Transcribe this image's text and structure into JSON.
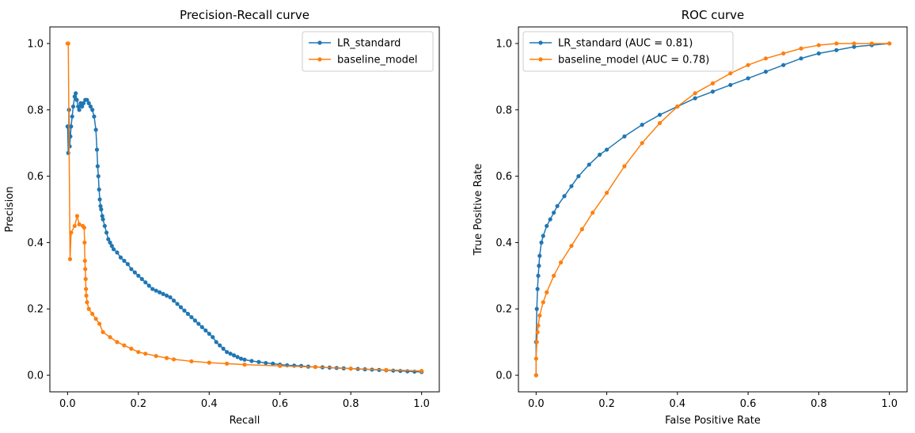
{
  "colors": {
    "series_1": "#1f77b4",
    "series_2": "#ff7f0e"
  },
  "chart_data": [
    {
      "type": "line",
      "title": "Precision-Recall curve",
      "xlabel": "Recall",
      "ylabel": "Precision",
      "xlim": [
        -0.05,
        1.05
      ],
      "ylim": [
        -0.05,
        1.05
      ],
      "xticks": [
        "0.0",
        "0.2",
        "0.4",
        "0.6",
        "0.8",
        "1.0"
      ],
      "yticks": [
        "0.0",
        "0.2",
        "0.4",
        "0.6",
        "0.8",
        "1.0"
      ],
      "grid": false,
      "legend_position": "top-right",
      "series": [
        {
          "name": "LR_standard",
          "color": "#1f77b4",
          "marker": "dot",
          "x": [
            0.0,
            0.002,
            0.004,
            0.006,
            0.008,
            0.01,
            0.013,
            0.016,
            0.02,
            0.023,
            0.026,
            0.03,
            0.033,
            0.037,
            0.041,
            0.045,
            0.05,
            0.055,
            0.06,
            0.065,
            0.07,
            0.075,
            0.08,
            0.083,
            0.085,
            0.087,
            0.089,
            0.091,
            0.093,
            0.095,
            0.098,
            0.1,
            0.105,
            0.11,
            0.115,
            0.12,
            0.125,
            0.13,
            0.14,
            0.15,
            0.16,
            0.17,
            0.18,
            0.19,
            0.2,
            0.21,
            0.22,
            0.23,
            0.24,
            0.25,
            0.26,
            0.27,
            0.28,
            0.29,
            0.3,
            0.31,
            0.32,
            0.33,
            0.34,
            0.35,
            0.36,
            0.37,
            0.38,
            0.39,
            0.4,
            0.41,
            0.42,
            0.43,
            0.44,
            0.45,
            0.46,
            0.47,
            0.48,
            0.49,
            0.5,
            0.52,
            0.54,
            0.56,
            0.58,
            0.6,
            0.62,
            0.64,
            0.66,
            0.68,
            0.7,
            0.72,
            0.74,
            0.76,
            0.78,
            0.8,
            0.82,
            0.84,
            0.86,
            0.88,
            0.9,
            0.92,
            0.94,
            0.96,
            0.98,
            1.0
          ],
          "y": [
            0.75,
            0.67,
            0.8,
            0.69,
            0.72,
            0.75,
            0.78,
            0.81,
            0.84,
            0.85,
            0.83,
            0.81,
            0.8,
            0.82,
            0.81,
            0.82,
            0.83,
            0.83,
            0.82,
            0.81,
            0.8,
            0.78,
            0.74,
            0.68,
            0.63,
            0.6,
            0.56,
            0.53,
            0.51,
            0.5,
            0.48,
            0.47,
            0.45,
            0.43,
            0.41,
            0.4,
            0.39,
            0.38,
            0.37,
            0.355,
            0.345,
            0.335,
            0.32,
            0.31,
            0.3,
            0.29,
            0.28,
            0.27,
            0.26,
            0.255,
            0.25,
            0.245,
            0.24,
            0.235,
            0.225,
            0.215,
            0.205,
            0.195,
            0.185,
            0.175,
            0.165,
            0.155,
            0.145,
            0.135,
            0.125,
            0.115,
            0.1,
            0.09,
            0.08,
            0.07,
            0.065,
            0.06,
            0.055,
            0.05,
            0.047,
            0.043,
            0.04,
            0.037,
            0.035,
            0.032,
            0.03,
            0.029,
            0.028,
            0.026,
            0.025,
            0.024,
            0.023,
            0.022,
            0.021,
            0.02,
            0.019,
            0.018,
            0.017,
            0.016,
            0.015,
            0.014,
            0.013,
            0.012,
            0.011,
            0.01
          ]
        },
        {
          "name": "baseline_model",
          "color": "#ff7f0e",
          "marker": "dot",
          "x": [
            0.0,
            0.002,
            0.007,
            0.01,
            0.02,
            0.027,
            0.033,
            0.043,
            0.047,
            0.048,
            0.049,
            0.05,
            0.051,
            0.052,
            0.053,
            0.055,
            0.06,
            0.07,
            0.08,
            0.09,
            0.1,
            0.12,
            0.14,
            0.16,
            0.18,
            0.2,
            0.22,
            0.25,
            0.28,
            0.3,
            0.35,
            0.4,
            0.45,
            0.5,
            0.6,
            0.7,
            0.8,
            0.9,
            1.0
          ],
          "y": [
            1.0,
            1.0,
            0.35,
            0.43,
            0.45,
            0.48,
            0.455,
            0.45,
            0.445,
            0.4,
            0.345,
            0.32,
            0.29,
            0.26,
            0.24,
            0.22,
            0.2,
            0.185,
            0.17,
            0.155,
            0.13,
            0.115,
            0.1,
            0.09,
            0.08,
            0.07,
            0.065,
            0.058,
            0.052,
            0.048,
            0.042,
            0.038,
            0.035,
            0.032,
            0.028,
            0.025,
            0.02,
            0.016,
            0.013
          ]
        }
      ]
    },
    {
      "type": "line",
      "title": "ROC curve",
      "xlabel": "False Positive Rate",
      "ylabel": "True Positive Rate",
      "xlim": [
        -0.05,
        1.05
      ],
      "ylim": [
        -0.05,
        1.05
      ],
      "xticks": [
        "0.0",
        "0.2",
        "0.4",
        "0.6",
        "0.8",
        "1.0"
      ],
      "yticks": [
        "0.0",
        "0.2",
        "0.4",
        "0.6",
        "0.8",
        "1.0"
      ],
      "grid": false,
      "legend_position": "top-left",
      "series": [
        {
          "name": "LR_standard (AUC = 0.81)",
          "color": "#1f77b4",
          "marker": "dot",
          "x": [
            0.0,
            0.0,
            0.002,
            0.004,
            0.006,
            0.008,
            0.01,
            0.015,
            0.02,
            0.03,
            0.04,
            0.05,
            0.06,
            0.08,
            0.1,
            0.12,
            0.15,
            0.18,
            0.2,
            0.25,
            0.3,
            0.35,
            0.4,
            0.45,
            0.5,
            0.55,
            0.6,
            0.65,
            0.7,
            0.75,
            0.8,
            0.85,
            0.9,
            0.95,
            1.0
          ],
          "y": [
            0.0,
            0.1,
            0.2,
            0.26,
            0.3,
            0.33,
            0.36,
            0.4,
            0.42,
            0.45,
            0.47,
            0.49,
            0.51,
            0.54,
            0.57,
            0.6,
            0.635,
            0.665,
            0.68,
            0.72,
            0.755,
            0.785,
            0.81,
            0.835,
            0.855,
            0.875,
            0.895,
            0.915,
            0.935,
            0.955,
            0.97,
            0.98,
            0.99,
            0.995,
            1.0
          ]
        },
        {
          "name": "baseline_model (AUC = 0.78)",
          "color": "#ff7f0e",
          "marker": "dot",
          "x": [
            0.0,
            0.0,
            0.002,
            0.004,
            0.006,
            0.01,
            0.02,
            0.03,
            0.05,
            0.07,
            0.1,
            0.13,
            0.16,
            0.2,
            0.25,
            0.3,
            0.35,
            0.4,
            0.45,
            0.5,
            0.55,
            0.6,
            0.65,
            0.7,
            0.75,
            0.8,
            0.85,
            0.9,
            0.95,
            1.0
          ],
          "y": [
            0.0,
            0.05,
            0.1,
            0.13,
            0.15,
            0.18,
            0.22,
            0.25,
            0.3,
            0.34,
            0.39,
            0.44,
            0.49,
            0.55,
            0.63,
            0.7,
            0.76,
            0.81,
            0.85,
            0.88,
            0.91,
            0.935,
            0.955,
            0.97,
            0.985,
            0.995,
            1.0,
            1.0,
            1.0,
            1.0
          ]
        }
      ]
    }
  ]
}
